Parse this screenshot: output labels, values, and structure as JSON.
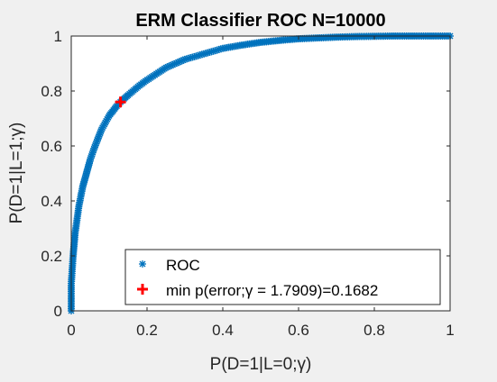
{
  "chart_data": {
    "type": "scatter",
    "title": "ERM Classifier ROC N=10000",
    "xlabel": "P(D=1|L=0;γ)",
    "ylabel": "P(D=1|L=1;γ)",
    "xlim": [
      0,
      1
    ],
    "ylim": [
      0,
      1
    ],
    "x_ticks": [
      "0",
      "0.2",
      "0.4",
      "0.6",
      "0.8",
      "1"
    ],
    "y_ticks": [
      "0",
      "0.2",
      "0.4",
      "0.6",
      "0.8",
      "1"
    ],
    "grid": false,
    "legend_position": "bottom-right",
    "series": [
      {
        "name": "ROC",
        "marker": "*",
        "color": "#0072bd",
        "x": [
          0,
          0,
          0.005,
          0.01,
          0.02,
          0.03,
          0.04,
          0.05,
          0.06,
          0.08,
          0.1,
          0.12,
          0.13,
          0.15,
          0.18,
          0.2,
          0.25,
          0.3,
          0.35,
          0.4,
          0.45,
          0.5,
          0.55,
          0.6,
          0.65,
          0.7,
          0.75,
          0.8,
          0.85,
          0.9,
          0.95,
          1.0
        ],
        "y": [
          0,
          0.1,
          0.2,
          0.28,
          0.38,
          0.45,
          0.5,
          0.55,
          0.59,
          0.66,
          0.71,
          0.745,
          0.76,
          0.785,
          0.82,
          0.84,
          0.885,
          0.915,
          0.935,
          0.955,
          0.967,
          0.977,
          0.984,
          0.99,
          0.993,
          0.996,
          0.998,
          0.999,
          1.0,
          1.0,
          1.0,
          1.0
        ]
      },
      {
        "name": "min p(error;γ = 1.7909)=0.1682",
        "marker": "+",
        "color": "#ff0000",
        "x": [
          0.13
        ],
        "y": [
          0.76
        ]
      }
    ],
    "legend": [
      {
        "label": "ROC",
        "marker": "*",
        "color": "#0072bd"
      },
      {
        "label": "min p(error;γ = 1.7909)=0.1682",
        "marker": "+",
        "color": "#ff0000"
      }
    ]
  }
}
